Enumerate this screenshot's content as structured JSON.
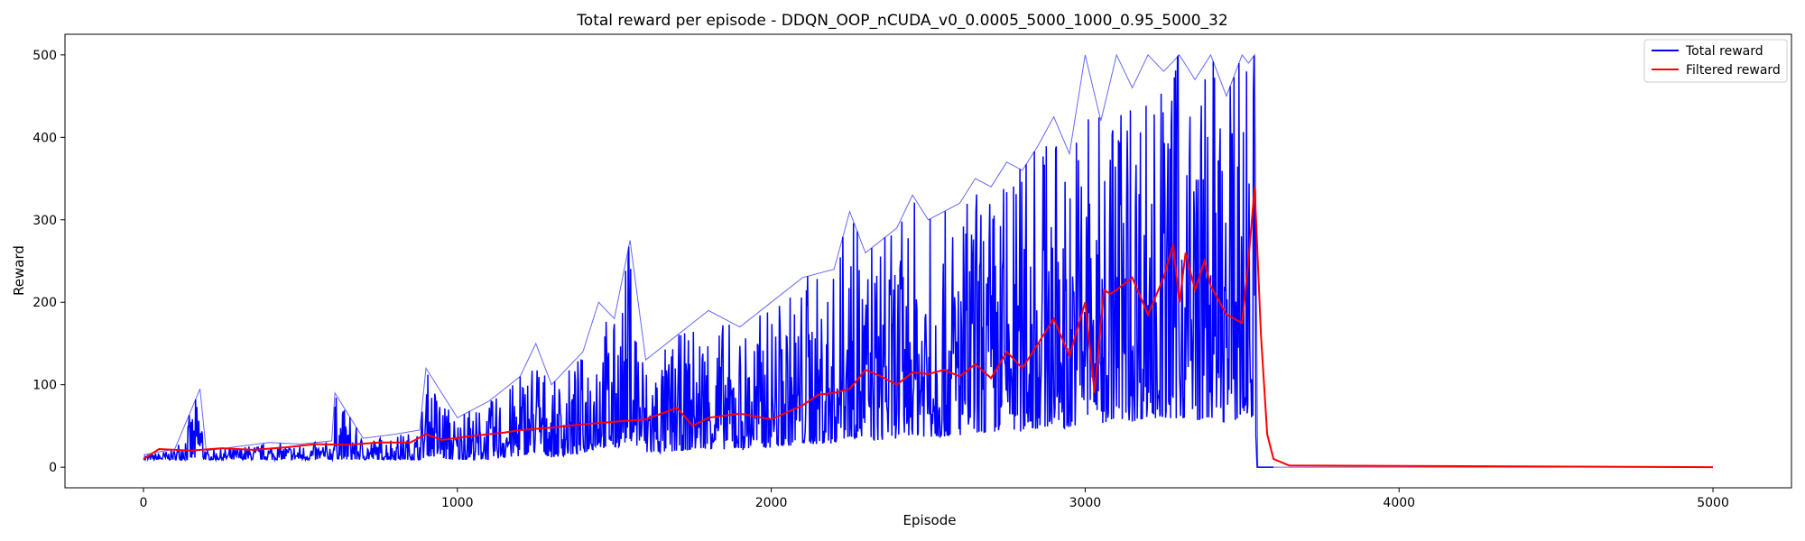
{
  "chart_data": {
    "type": "line",
    "title": "Total reward per episode - DDQN_OOP_nCUDA_v0_0.0005_5000_1000_0.95_5000_32",
    "xlabel": "Episode",
    "ylabel": "Reward",
    "xlim": [
      -250,
      5250
    ],
    "ylim": [
      -25,
      525
    ],
    "xticks": [
      0,
      1000,
      2000,
      3000,
      4000,
      5000
    ],
    "yticks": [
      0,
      100,
      200,
      300,
      400,
      500
    ],
    "legend_position": "top-right",
    "series": [
      {
        "name": "Total reward",
        "color": "#0000ff",
        "x": [
          0,
          100,
          180,
          200,
          300,
          400,
          500,
          600,
          610,
          700,
          800,
          880,
          900,
          1000,
          1100,
          1200,
          1250,
          1300,
          1400,
          1450,
          1500,
          1550,
          1600,
          1700,
          1800,
          1900,
          2000,
          2100,
          2200,
          2250,
          2300,
          2400,
          2450,
          2500,
          2600,
          2650,
          2700,
          2750,
          2800,
          2850,
          2900,
          2950,
          3000,
          3050,
          3100,
          3150,
          3200,
          3250,
          3300,
          3350,
          3400,
          3450,
          3500,
          3520,
          3540,
          3550,
          3560,
          3600,
          5000
        ],
        "y": [
          15,
          22,
          95,
          20,
          25,
          30,
          28,
          32,
          90,
          35,
          40,
          45,
          120,
          60,
          80,
          110,
          150,
          100,
          140,
          200,
          180,
          275,
          130,
          160,
          190,
          170,
          200,
          230,
          240,
          310,
          260,
          290,
          330,
          300,
          320,
          350,
          340,
          370,
          360,
          390,
          425,
          380,
          500,
          420,
          500,
          460,
          500,
          480,
          500,
          470,
          500,
          450,
          500,
          490,
          500,
          0,
          0,
          0,
          0
        ]
      },
      {
        "name": "Filtered reward",
        "color": "#ff0000",
        "x": [
          0,
          50,
          150,
          250,
          350,
          450,
          550,
          650,
          750,
          850,
          900,
          950,
          1050,
          1150,
          1200,
          1300,
          1400,
          1500,
          1600,
          1700,
          1750,
          1800,
          1900,
          2000,
          2100,
          2150,
          2200,
          2250,
          2300,
          2350,
          2400,
          2450,
          2500,
          2550,
          2600,
          2650,
          2700,
          2750,
          2800,
          2850,
          2900,
          2950,
          3000,
          3030,
          3060,
          3080,
          3100,
          3150,
          3200,
          3250,
          3280,
          3300,
          3320,
          3350,
          3380,
          3400,
          3450,
          3500,
          3520,
          3540,
          3560,
          3580,
          3600,
          3650,
          5000
        ],
        "y": [
          10,
          22,
          20,
          23,
          21,
          24,
          28,
          27,
          30,
          30,
          40,
          33,
          38,
          42,
          45,
          48,
          52,
          55,
          58,
          72,
          50,
          60,
          65,
          58,
          75,
          88,
          90,
          95,
          118,
          110,
          100,
          115,
          113,
          118,
          110,
          125,
          108,
          140,
          120,
          150,
          180,
          135,
          200,
          90,
          215,
          210,
          215,
          230,
          185,
          230,
          270,
          200,
          260,
          215,
          250,
          220,
          185,
          175,
          250,
          340,
          160,
          40,
          10,
          2,
          0
        ]
      }
    ]
  }
}
